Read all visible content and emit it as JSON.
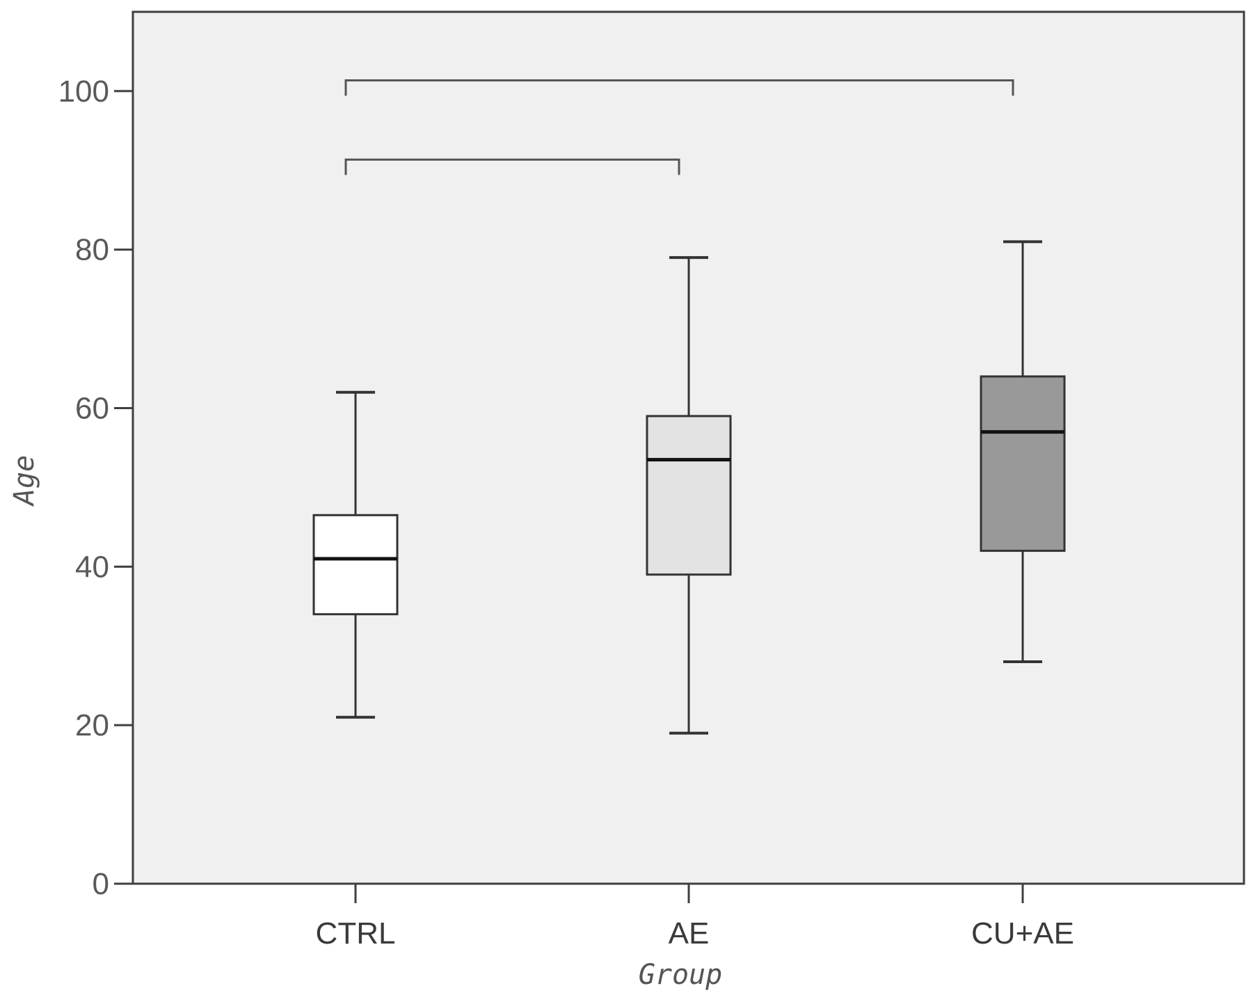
{
  "chart_data": {
    "type": "boxplot",
    "title": "",
    "xlabel": "Group",
    "ylabel": "Age",
    "ylim": [
      0,
      110
    ],
    "yticks": [
      0,
      20,
      40,
      60,
      80,
      100
    ],
    "grid": false,
    "categories": [
      "CTRL",
      "AE",
      "CU+AE"
    ],
    "boxes": [
      {
        "category": "CTRL",
        "min": 21,
        "q1": 34,
        "median": 41,
        "q3": 46.5,
        "max": 62,
        "fill": "#ffffff"
      },
      {
        "category": "AE",
        "min": 19,
        "q1": 39,
        "median": 53.5,
        "q3": 59,
        "max": 79,
        "fill": "#e3e3e3"
      },
      {
        "category": "CU+AE",
        "min": 28,
        "q1": 42,
        "median": 57,
        "q3": 64,
        "max": 81,
        "fill": "#999999"
      }
    ],
    "comparison_brackets": [
      {
        "from": "CTRL",
        "to": "CU+AE",
        "y": 101
      },
      {
        "from": "CTRL",
        "to": "AE",
        "y": 91
      }
    ],
    "colors": {
      "plot_background": "#f0f0f0",
      "frame": "#3f3f3f",
      "whisker": "#333333",
      "bracket": "#555555"
    }
  }
}
